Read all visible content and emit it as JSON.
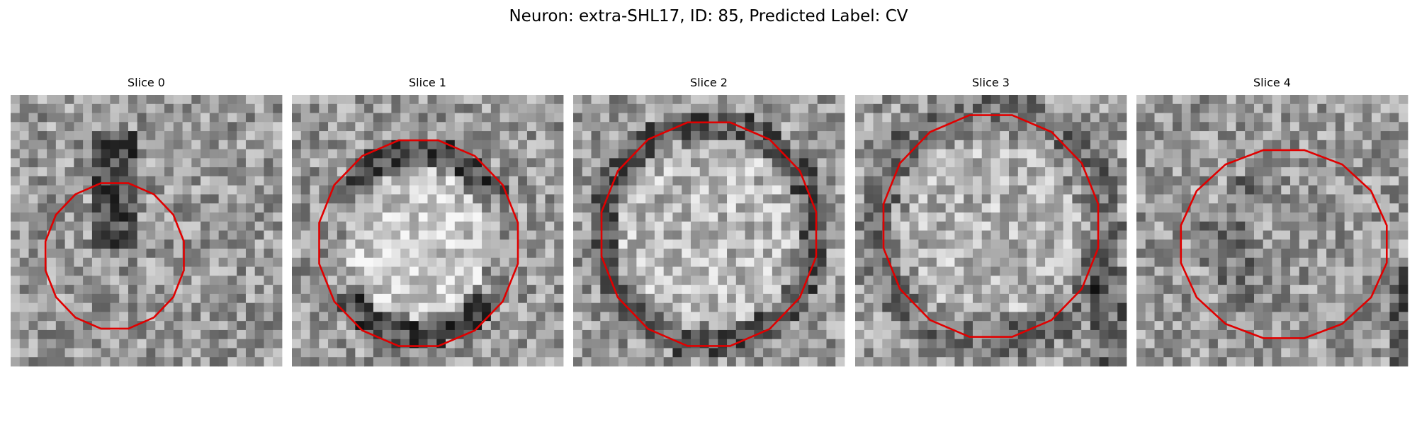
{
  "title": "Neuron: extra-SHL17, ID: 85, Predicted Label: CV",
  "panels": [
    {
      "label": "Slice 0"
    },
    {
      "label": "Slice 1"
    },
    {
      "label": "Slice 2"
    },
    {
      "label": "Slice 3"
    },
    {
      "label": "Slice 4"
    }
  ]
}
